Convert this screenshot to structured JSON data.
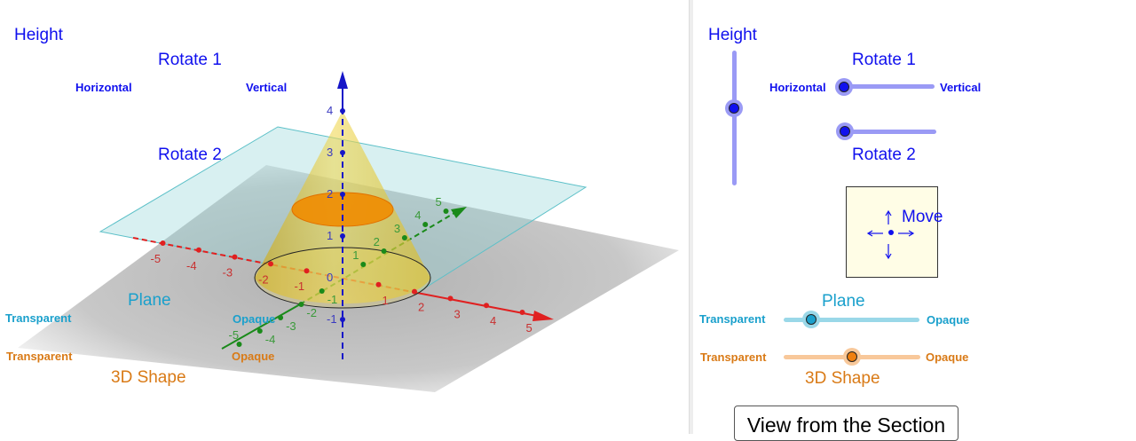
{
  "graphics_view": {
    "labels": {
      "height": "Height",
      "rotate1": "Rotate 1",
      "horizontal": "Horizontal",
      "vertical": "Vertical",
      "rotate2": "Rotate 2",
      "plane": "Plane",
      "plane_transparent": "Transparent",
      "plane_opaque": "Opaque",
      "shape_transparent": "Transparent",
      "shape_opaque": "Opaque",
      "shape": "3D Shape"
    },
    "axes": {
      "x_ticks": [
        "-5",
        "-4",
        "-3",
        "-2",
        "-1",
        "1",
        "2",
        "3",
        "4",
        "5"
      ],
      "y_ticks": [
        "-5",
        "-4",
        "-3",
        "-2",
        "-1",
        "1",
        "2",
        "3",
        "4",
        "5"
      ],
      "z_ticks": [
        "4",
        "3",
        "2",
        "1",
        "0",
        "-1"
      ],
      "x_color": "#e02020",
      "y_color": "#1a8a1a",
      "z_color": "#1515c8"
    },
    "colors": {
      "cone": "#e8c830",
      "section": "#f08c00",
      "plane": "#8fd3d8"
    }
  },
  "controls": {
    "height": {
      "label": "Height",
      "value": 0.57
    },
    "rotate1": {
      "label": "Rotate 1",
      "left": "Horizontal",
      "right": "Vertical",
      "value": 0
    },
    "rotate2": {
      "label": "Rotate 2",
      "value": 0
    },
    "move": {
      "label": "Move"
    },
    "plane_opacity": {
      "label": "Plane",
      "left": "Transparent",
      "right": "Opaque",
      "value": 0.2,
      "color": "#1aa0cc"
    },
    "shape_opacity": {
      "label": "3D Shape",
      "left": "Transparent",
      "right": "Opaque",
      "value": 0.5,
      "color": "#e07a10"
    },
    "section_button": "View from the Section"
  }
}
